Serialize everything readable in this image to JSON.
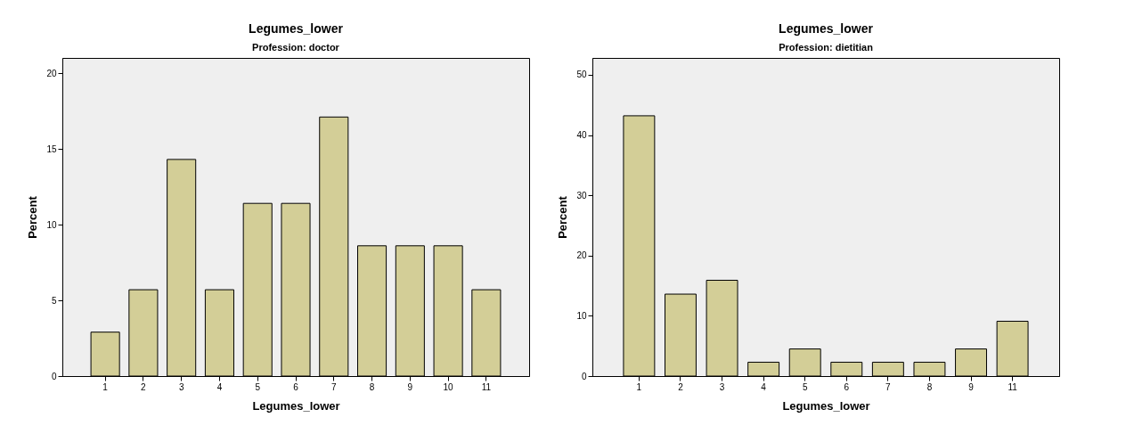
{
  "chart_data": [
    {
      "type": "bar",
      "title": "Legumes_lower",
      "subtitle": "Profession: doctor",
      "xlabel": "Legumes_lower",
      "ylabel": "Percent",
      "categories": [
        "1",
        "2",
        "3",
        "4",
        "5",
        "6",
        "7",
        "8",
        "9",
        "10",
        "11"
      ],
      "values": [
        2.9,
        5.7,
        14.3,
        5.7,
        11.4,
        11.4,
        17.1,
        8.6,
        8.6,
        8.6,
        5.7
      ],
      "color": "#d3ce97",
      "ylim": [
        0,
        21
      ],
      "yticks": [
        0,
        5,
        10,
        15,
        20
      ],
      "grid": false
    },
    {
      "type": "bar",
      "title": "Legumes_lower",
      "subtitle": "Profession: dietitian",
      "xlabel": "Legumes_lower",
      "ylabel": "Percent",
      "categories": [
        "1",
        "2",
        "3",
        "4",
        "5",
        "6",
        "7",
        "8",
        "9",
        "11"
      ],
      "values": [
        43.2,
        13.6,
        15.9,
        2.3,
        4.5,
        2.3,
        2.3,
        2.3,
        4.5,
        9.1
      ],
      "color": "#d3ce97",
      "ylim": [
        0,
        52.8
      ],
      "yticks": [
        0,
        10,
        20,
        30,
        40,
        50
      ],
      "grid": false
    }
  ]
}
